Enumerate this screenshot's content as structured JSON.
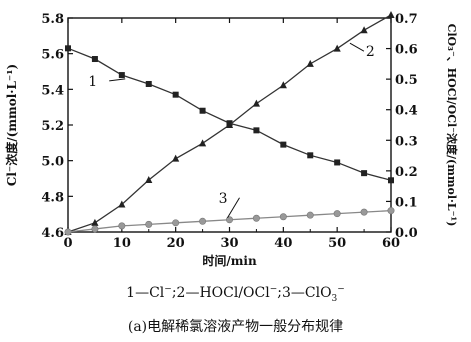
{
  "chart_data": {
    "type": "line",
    "x": [
      0,
      5,
      10,
      15,
      20,
      25,
      30,
      35,
      40,
      45,
      50,
      55,
      60
    ],
    "xlabel": "时间/min",
    "xlim": [
      0,
      60
    ],
    "xticks": [
      0,
      10,
      20,
      30,
      40,
      50,
      60
    ],
    "ylabel_left": "Cl⁻浓度/(mmol·L⁻¹)",
    "ylim_left": [
      4.6,
      5.8
    ],
    "yticks_left": [
      "4.6",
      "4.8",
      "5.0",
      "5.2",
      "5.4",
      "5.6",
      "5.8"
    ],
    "ylabel_right": "ClO₃⁻、HOCl/OCl⁻浓度/(mmol·L⁻¹)",
    "ylim_right": [
      0,
      0.7
    ],
    "yticks_right": [
      "0.0",
      "0.1",
      "0.2",
      "0.3",
      "0.4",
      "0.5",
      "0.6",
      "0.7"
    ],
    "grid": false,
    "series": [
      {
        "name": "1",
        "axis": "left",
        "marker": "square",
        "color": "#333333",
        "values": [
          5.63,
          5.57,
          5.48,
          5.43,
          5.37,
          5.28,
          5.21,
          5.17,
          5.09,
          5.03,
          4.99,
          4.93,
          4.89
        ]
      },
      {
        "name": "2",
        "axis": "right",
        "marker": "triangle",
        "color": "#333333",
        "values": [
          0.0,
          0.03,
          0.09,
          0.17,
          0.24,
          0.29,
          0.35,
          0.42,
          0.48,
          0.55,
          0.6,
          0.66,
          0.71
        ]
      },
      {
        "name": "3",
        "axis": "right",
        "marker": "circle",
        "color": "#888888",
        "values": [
          0.0,
          0.01,
          0.02,
          0.025,
          0.03,
          0.035,
          0.04,
          0.045,
          0.05,
          0.055,
          0.06,
          0.065,
          0.07
        ]
      }
    ],
    "curve_labels": [
      {
        "text": "1",
        "series": 0,
        "x": 11
      },
      {
        "text": "2",
        "series": 1,
        "x": 52
      },
      {
        "text": "3",
        "series": 2,
        "x": 30
      }
    ]
  },
  "legend": {
    "s1_num": "1—Cl",
    "s1_sup": "−",
    "s1_sep": ";",
    "s2_text": "2—HOCl/OCl",
    "s2_sup": "−",
    "s2_sep": ";",
    "s3_text": "3—ClO",
    "s3_sub": "3",
    "s3_sup": "−"
  },
  "caption": "(a)电解稀氯溶液产物一般分布规律"
}
